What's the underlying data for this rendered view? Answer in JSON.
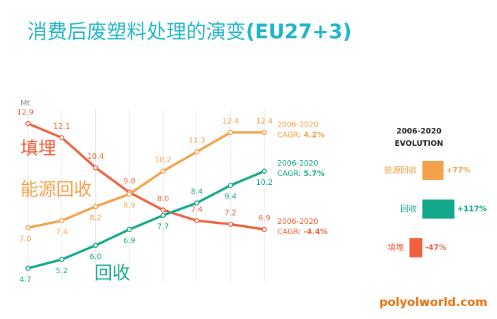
{
  "title": "消费后废塑料处理的演变",
  "title_suffix": "(EU27+3)",
  "source": "polyolworld.com",
  "chart_data": [
    {
      "type": "line",
      "y_unit": "Mt",
      "grid": true,
      "categories": [
        null,
        null,
        null,
        null,
        null,
        null,
        null,
        null
      ],
      "ylim": [
        4,
        13.5
      ],
      "series": [
        {
          "name": "填埋",
          "color": "#f0603c",
          "values": [
            12.9,
            12.1,
            10.4,
            9.0,
            8.0,
            7.4,
            7.2,
            6.9
          ],
          "value_labels": [
            "12.9",
            "12.1",
            "10.4",
            "9.0",
            "8.0",
            "7.4",
            "7.2",
            "6.9"
          ],
          "annotation": {
            "period": "2006-2020",
            "prefix": "CAGR:",
            "value": "-4.4%"
          }
        },
        {
          "name": "能源回收",
          "color": "#f5a04a",
          "values": [
            7.0,
            7.4,
            8.2,
            8.9,
            10.2,
            11.3,
            12.4,
            12.4
          ],
          "value_labels": [
            "7.0",
            "7.4",
            "8.2",
            "8.9",
            "10.2",
            "11.3",
            "12.4",
            "12.4"
          ],
          "annotation": {
            "period": "2006-2020",
            "prefix": "CAGR:",
            "value": "4.2%"
          }
        },
        {
          "name": "回收",
          "color": "#13a88a",
          "values": [
            4.7,
            5.2,
            6.0,
            6.9,
            7.7,
            8.4,
            9.4,
            10.2
          ],
          "value_labels": [
            "4.7",
            "5.2",
            "6.0",
            "6.9",
            "7.7",
            "8.4",
            "9.4",
            "10.2"
          ],
          "annotation": {
            "period": "2006-2020",
            "prefix": "CAGR:",
            "value": "5.7%"
          }
        }
      ]
    },
    {
      "type": "hbar",
      "title": [
        "2006-2020",
        "EVOLUTION"
      ],
      "categories": [
        "能源回收",
        "回收",
        "填埋"
      ],
      "values": [
        77,
        117,
        -47
      ],
      "value_labels": [
        "+77%",
        "+117%",
        "-47%"
      ],
      "colors": [
        "#f5a04a",
        "#13a88a",
        "#f0603c"
      ],
      "xlim": [
        -75,
        130
      ]
    }
  ]
}
